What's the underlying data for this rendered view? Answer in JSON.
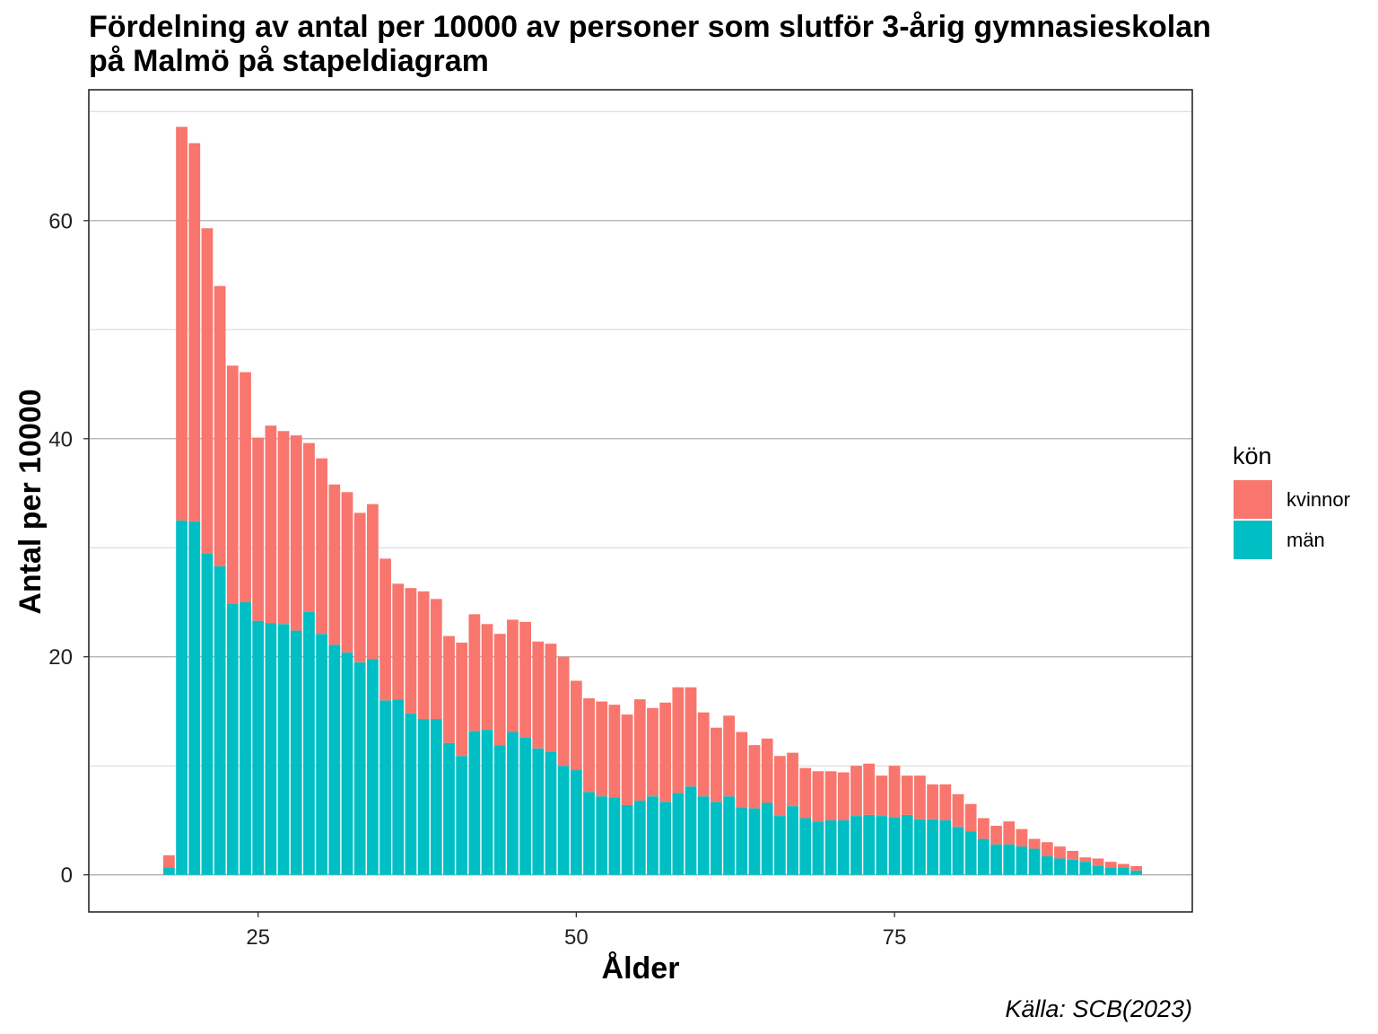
{
  "chart_data": {
    "type": "bar",
    "stacked": true,
    "title_lines": [
      "Fördelning av antal per 10000 av personer som slutför 3-årig gymnasieskolan",
      "på Malmö på stapeldiagram"
    ],
    "xlabel": "Ålder",
    "ylabel": "Antal per 10000",
    "caption": "Källa: SCB(2023)",
    "x": [
      18,
      19,
      20,
      21,
      22,
      23,
      24,
      25,
      26,
      27,
      28,
      29,
      30,
      31,
      32,
      33,
      34,
      35,
      36,
      37,
      38,
      39,
      40,
      41,
      42,
      43,
      44,
      45,
      46,
      47,
      48,
      49,
      50,
      51,
      52,
      53,
      54,
      55,
      56,
      57,
      58,
      59,
      60,
      61,
      62,
      63,
      64,
      65,
      66,
      67,
      68,
      69,
      70,
      71,
      72,
      73,
      74,
      75,
      76,
      77,
      78,
      79,
      80,
      81,
      82,
      83,
      84,
      85,
      86,
      87,
      88,
      89,
      90,
      91,
      92,
      93,
      94
    ],
    "series": [
      {
        "name": "kvinnor",
        "color": "#F8766D",
        "values": [
          1.1,
          36.1,
          34.7,
          29.8,
          25.7,
          21.8,
          21.1,
          16.8,
          18.1,
          17.7,
          17.9,
          15.5,
          16.1,
          14.7,
          14.7,
          13.7,
          14.2,
          13.0,
          10.6,
          11.5,
          11.7,
          11.0,
          9.8,
          10.4,
          10.7,
          9.7,
          10.2,
          10.3,
          10.6,
          9.8,
          9.9,
          10.0,
          8.2,
          8.6,
          8.7,
          8.5,
          8.3,
          9.3,
          8.1,
          9.1,
          9.7,
          9.1,
          7.7,
          6.8,
          7.4,
          6.9,
          5.8,
          5.9,
          5.5,
          4.9,
          4.6,
          4.6,
          4.5,
          4.4,
          4.6,
          4.7,
          3.7,
          4.7,
          3.6,
          4.0,
          3.2,
          3.3,
          3.0,
          2.5,
          1.9,
          1.7,
          2.1,
          1.6,
          0.9,
          1.3,
          1.1,
          0.8,
          0.4,
          0.7,
          0.5,
          0.3,
          0.4
        ]
      },
      {
        "name": "män",
        "color": "#00BFC4",
        "values": [
          0.7,
          32.5,
          32.4,
          29.5,
          28.3,
          24.9,
          25.0,
          23.3,
          23.1,
          23.0,
          22.4,
          24.1,
          22.1,
          21.1,
          20.4,
          19.5,
          19.8,
          16.0,
          16.1,
          14.8,
          14.3,
          14.3,
          12.1,
          10.9,
          13.2,
          13.3,
          11.9,
          13.1,
          12.6,
          11.6,
          11.3,
          10.0,
          9.6,
          7.6,
          7.2,
          7.1,
          6.4,
          6.8,
          7.2,
          6.7,
          7.5,
          8.1,
          7.2,
          6.7,
          7.2,
          6.2,
          6.1,
          6.6,
          5.4,
          6.3,
          5.2,
          4.9,
          5.0,
          5.0,
          5.4,
          5.5,
          5.4,
          5.3,
          5.5,
          5.1,
          5.1,
          5.0,
          4.4,
          4.0,
          3.3,
          2.8,
          2.8,
          2.6,
          2.4,
          1.7,
          1.5,
          1.4,
          1.2,
          0.8,
          0.7,
          0.7,
          0.4
        ]
      }
    ],
    "xlim": [
      11.7,
      98.4
    ],
    "ylim": [
      -3.4,
      72
    ],
    "xticks": [
      25,
      50,
      75
    ],
    "yticks": [
      0,
      20,
      40,
      60
    ],
    "grid": {
      "horizontal_major": true,
      "horizontal_minor": true,
      "vertical": false
    },
    "legend": {
      "title": "kön",
      "position": "right"
    }
  }
}
